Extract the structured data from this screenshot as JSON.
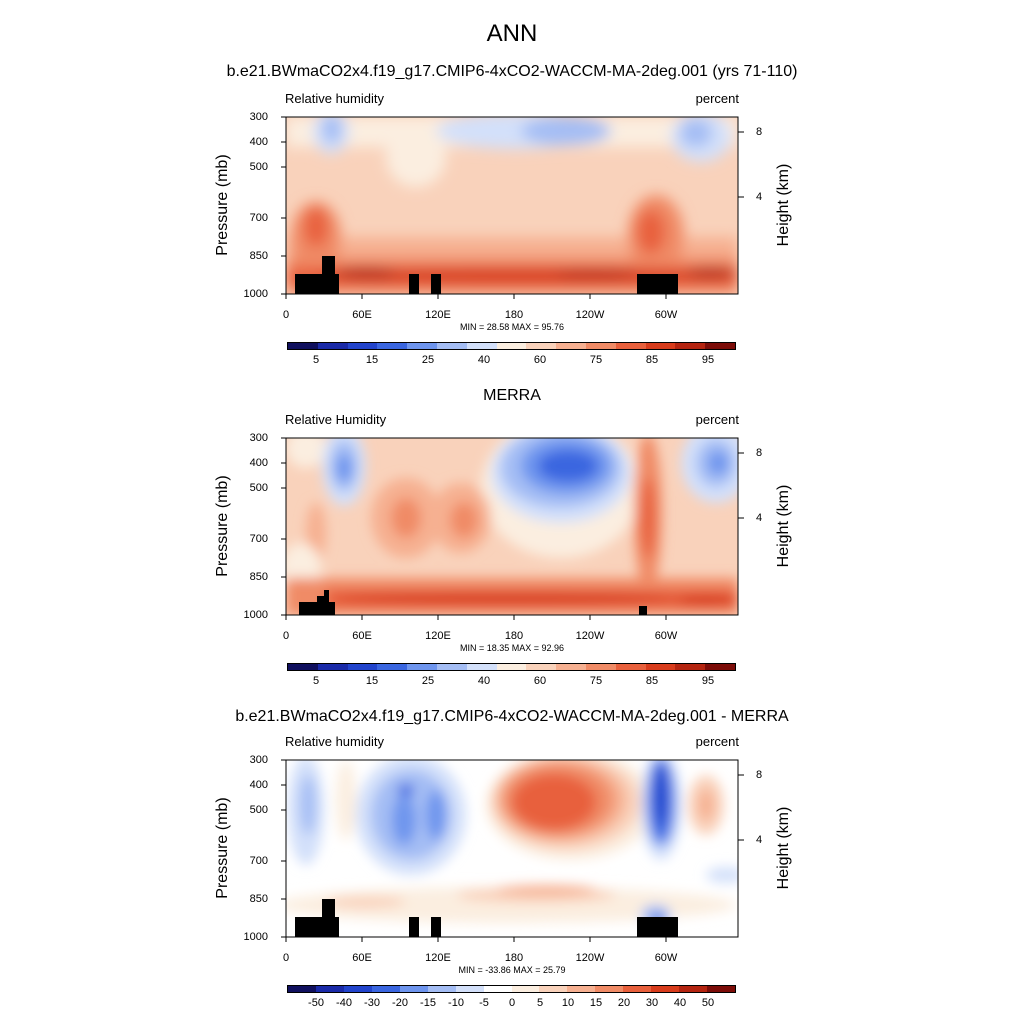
{
  "figure": {
    "title": "ANN",
    "yticks": [
      "300",
      "400",
      "500",
      "700",
      "850",
      "1000"
    ],
    "xticks": [
      "0",
      "60E",
      "120E",
      "180",
      "120W",
      "60W"
    ],
    "hticks": [
      "8",
      "4"
    ],
    "ylabel": "Pressure (mb)",
    "ylabel_right": "Height (km)"
  },
  "panels": [
    {
      "title": "b.e21.BWmaCO2x4.f19_g17.CMIP6-4xCO2-WACCM-MA-2deg.001 (yrs 71-110)",
      "left": "Relative humidity",
      "right": "percent",
      "minmax": "MIN = 28.58  MAX = 95.76"
    },
    {
      "title": "MERRA",
      "left": "Relative Humidity",
      "right": "percent",
      "minmax": "MIN = 18.35  MAX = 92.96"
    },
    {
      "title": "b.e21.BWmaCO2x4.f19_g17.CMIP6-4xCO2-WACCM-MA-2deg.001 - MERRA",
      "left": "Relative humidity",
      "right": "percent",
      "minmax": "MIN = -33.86  MAX = 25.79"
    }
  ],
  "colorbars": {
    "abs_labels": [
      "5",
      "15",
      "25",
      "40",
      "60",
      "75",
      "85",
      "95"
    ],
    "diff_labels": [
      "-50",
      "-40",
      "-30",
      "-20",
      "-15",
      "-10",
      "-5",
      "0",
      "5",
      "10",
      "15",
      "20",
      "30",
      "40",
      "50"
    ],
    "abs_colors": [
      "#10105e",
      "#1a2aa8",
      "#2244cc",
      "#3a66e0",
      "#6e95ee",
      "#a4bdf4",
      "#d3e0fa",
      "#fbeee0",
      "#f9d2bb",
      "#f6b091",
      "#f08b66",
      "#e8603c",
      "#d83c1c",
      "#b42410",
      "#7c0c08"
    ],
    "diff_colors": [
      "#10105e",
      "#1a2aa8",
      "#2244cc",
      "#3a66e0",
      "#6e95ee",
      "#a4bdf4",
      "#d3e0fa",
      "#ffffff",
      "#fbeee0",
      "#f9d2bb",
      "#f6b091",
      "#f08b66",
      "#e8603c",
      "#d83c1c",
      "#b42410",
      "#7c0c08"
    ]
  },
  "chart_data": [
    {
      "type": "heatmap",
      "title": "b.e21.BWmaCO2x4.f19_g17.CMIP6-4xCO2-WACCM-MA-2deg.001 (yrs 71-110)",
      "field": "Relative humidity",
      "units": "percent",
      "x_ticks": [
        "0",
        "60E",
        "120E",
        "180",
        "120W",
        "60W"
      ],
      "y_ticks": [
        300,
        400,
        500,
        700,
        850,
        1000
      ],
      "ylabel": "Pressure (mb)",
      "ylabel_right": "Height (km)",
      "min": 28.58,
      "max": 95.76,
      "levels": [
        5,
        10,
        15,
        20,
        25,
        30,
        40,
        50,
        60,
        70,
        75,
        80,
        85,
        90,
        95
      ]
    },
    {
      "type": "heatmap",
      "title": "MERRA",
      "field": "Relative Humidity",
      "units": "percent",
      "x_ticks": [
        "0",
        "60E",
        "120E",
        "180",
        "120W",
        "60W"
      ],
      "y_ticks": [
        300,
        400,
        500,
        700,
        850,
        1000
      ],
      "ylabel": "Pressure (mb)",
      "ylabel_right": "Height (km)",
      "min": 18.35,
      "max": 92.96,
      "levels": [
        5,
        10,
        15,
        20,
        25,
        30,
        40,
        50,
        60,
        70,
        75,
        80,
        85,
        90,
        95
      ]
    },
    {
      "type": "heatmap",
      "title": "b.e21.BWmaCO2x4.f19_g17.CMIP6-4xCO2-WACCM-MA-2deg.001 - MERRA",
      "field": "Relative humidity",
      "units": "percent",
      "x_ticks": [
        "0",
        "60E",
        "120E",
        "180",
        "120W",
        "60W"
      ],
      "y_ticks": [
        300,
        400,
        500,
        700,
        850,
        1000
      ],
      "ylabel": "Pressure (mb)",
      "ylabel_right": "Height (km)",
      "min": -33.86,
      "max": 25.79,
      "levels": [
        -50,
        -40,
        -30,
        -20,
        -15,
        -10,
        -5,
        0,
        5,
        10,
        15,
        20,
        30,
        40,
        50
      ]
    }
  ]
}
